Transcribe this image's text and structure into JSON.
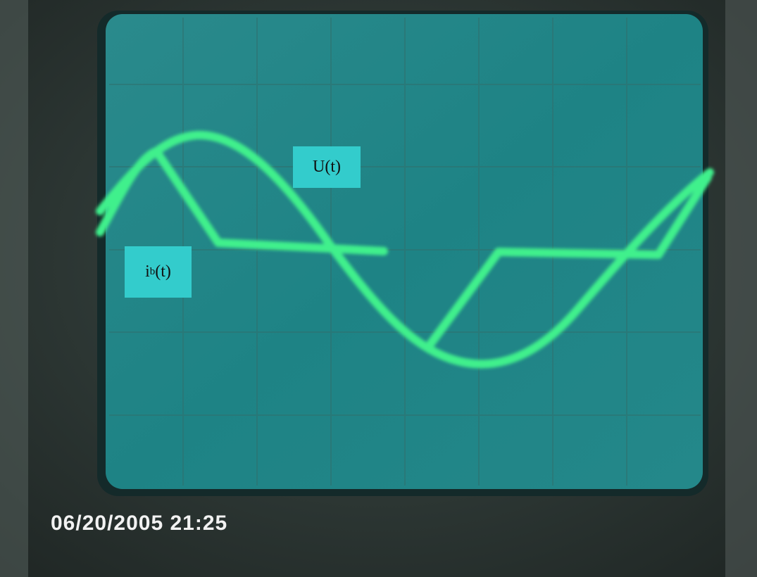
{
  "labels": {
    "voltage": "U(t)",
    "current": {
      "base": "i",
      "sub": "b",
      "suffix": "(t)"
    }
  },
  "timestamp": "06/20/2005 21:25"
}
